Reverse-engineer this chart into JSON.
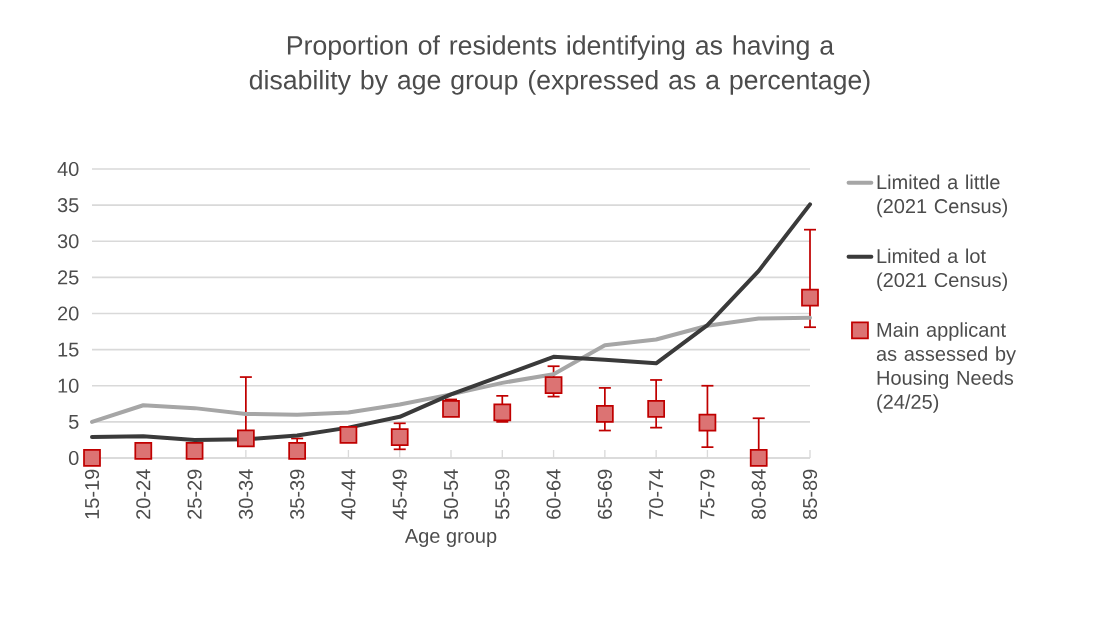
{
  "chart_data": {
    "type": "line",
    "title": "Proportion of residents identifying as having a disability by age group (expressed as a percentage)",
    "xlabel": "Age group",
    "categories": [
      "15-19",
      "20-24",
      "25-29",
      "30-34",
      "35-39",
      "40-44",
      "45-49",
      "50-54",
      "55-59",
      "60-64",
      "65-69",
      "70-74",
      "75-79",
      "80-84",
      "85-89"
    ],
    "series": [
      {
        "name": "Limited a little (2021 Census)",
        "color": "#a6a6a6",
        "values": [
          5.0,
          7.3,
          6.9,
          6.1,
          6.0,
          6.3,
          7.4,
          8.8,
          10.4,
          11.6,
          15.6,
          16.4,
          18.3,
          19.3,
          19.4
        ]
      },
      {
        "name": "Limited a lot (2021 Census)",
        "color": "#3a3a3a",
        "values": [
          2.9,
          3.0,
          2.5,
          2.6,
          3.1,
          4.2,
          5.7,
          8.8,
          11.4,
          14.0,
          13.6,
          13.1,
          18.4,
          25.9,
          35.1
        ]
      },
      {
        "name": "Main applicant as assessed by Housing Needs (24/25)",
        "type": "scatter",
        "marker": "square",
        "color": "#c00000",
        "values": [
          0,
          1.0,
          1.0,
          2.7,
          1.0,
          3.2,
          2.9,
          6.8,
          6.3,
          10.1,
          6.1,
          6.8,
          4.9,
          0,
          22.2
        ],
        "errors": [
          null,
          null,
          null,
          [
            2.7,
            11.2
          ],
          [
            1.0,
            2.7
          ],
          [
            3.2,
            3.9
          ],
          [
            1.2,
            4.8
          ],
          [
            6.8,
            8.1
          ],
          [
            5.0,
            8.6
          ],
          [
            8.5,
            12.7
          ],
          [
            3.8,
            9.7
          ],
          [
            4.2,
            10.8
          ],
          [
            1.5,
            10.0
          ],
          [
            0,
            5.5
          ],
          [
            18.1,
            31.6
          ]
        ]
      }
    ],
    "ylim": [
      0,
      40
    ],
    "yticks": [
      0,
      5,
      10,
      15,
      20,
      25,
      30,
      35,
      40
    ],
    "grid": "y",
    "legend": "right"
  }
}
